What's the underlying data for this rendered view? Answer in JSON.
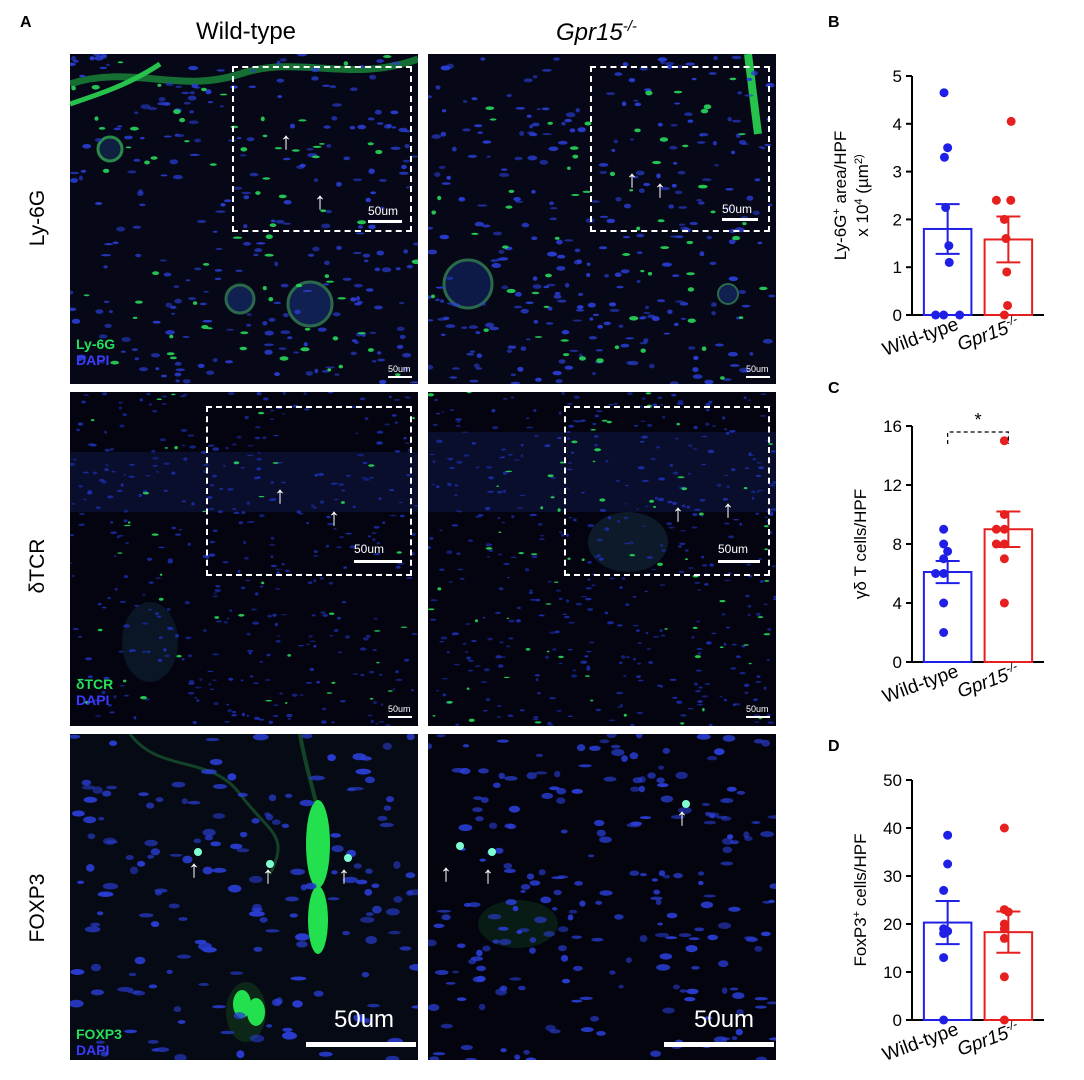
{
  "figure": {
    "panel_labels": {
      "a": "A",
      "b": "B",
      "c": "C",
      "d": "D"
    },
    "column_titles": {
      "wt": "Wild-type",
      "ko_base": "Gpr15",
      "ko_sup": "-/-"
    },
    "row_labels": {
      "ly6g": "Ly-6G",
      "tcr": "δTCR",
      "foxp3": "FOXP3"
    },
    "channels": {
      "ly6g": {
        "marker": "Ly-6G",
        "dapi": "DAPI"
      },
      "tcr": {
        "marker": "δTCR",
        "dapi": "DAPI"
      },
      "foxp3": {
        "marker": "FOXP3",
        "dapi": "DAPI"
      }
    },
    "scalebars": {
      "text": "50um"
    }
  },
  "colors": {
    "wild_type": "#1f1fe6",
    "knockout": "#e61f1f",
    "marker_green": "#25e05a",
    "dapi_blue": "#3b3bff"
  },
  "chart_data": [
    {
      "panel": "B",
      "type": "scatter",
      "ylabel_parts": [
        "Ly-6G",
        "+",
        " area/HPF",
        "x 10",
        "4",
        " (µm",
        "2",
        ")"
      ],
      "ylim": [
        0,
        5
      ],
      "yticks": [
        0,
        1,
        2,
        3,
        4,
        5
      ],
      "categories": [
        "Wild-type",
        "Gpr15-/-"
      ],
      "series": [
        {
          "name": "Wild-type",
          "mean": 1.8,
          "sem": 0.52,
          "points": [
            4.65,
            3.5,
            3.3,
            2.25,
            1.45,
            1.1,
            0,
            0,
            0
          ]
        },
        {
          "name": "Gpr15-/-",
          "mean": 1.58,
          "sem": 0.48,
          "points": [
            4.05,
            2.4,
            2.4,
            2.0,
            1.6,
            0.9,
            0.2,
            0
          ]
        }
      ]
    },
    {
      "panel": "C",
      "type": "scatter",
      "ylabel": "γδ T cells/HPF",
      "ylim": [
        0,
        16
      ],
      "yticks": [
        0,
        4,
        8,
        12,
        16
      ],
      "categories": [
        "Wild-type",
        "Gpr15-/-"
      ],
      "significance": "*",
      "series": [
        {
          "name": "Wild-type",
          "mean": 6.1,
          "sem": 0.75,
          "points": [
            9,
            8,
            7.5,
            7,
            6,
            6,
            4,
            2
          ]
        },
        {
          "name": "Gpr15-/-",
          "mean": 9.0,
          "sem": 1.2,
          "points": [
            15,
            10,
            9,
            9,
            8,
            8,
            7,
            4
          ]
        }
      ]
    },
    {
      "panel": "D",
      "type": "scatter",
      "ylabel_parts": [
        "FoxP3",
        "+",
        " cells/HPF"
      ],
      "ylim": [
        0,
        50
      ],
      "yticks": [
        0,
        10,
        20,
        30,
        40,
        50
      ],
      "categories": [
        "Wild-type",
        "Gpr15-/-"
      ],
      "series": [
        {
          "name": "Wild-type",
          "mean": 20.3,
          "sem": 4.5,
          "points": [
            38.5,
            32.5,
            27,
            19,
            18.5,
            18,
            13,
            0
          ]
        },
        {
          "name": "Gpr15-/-",
          "mean": 18.3,
          "sem": 4.3,
          "points": [
            40,
            23,
            22.5,
            20,
            19,
            17,
            9,
            0
          ]
        }
      ]
    }
  ]
}
